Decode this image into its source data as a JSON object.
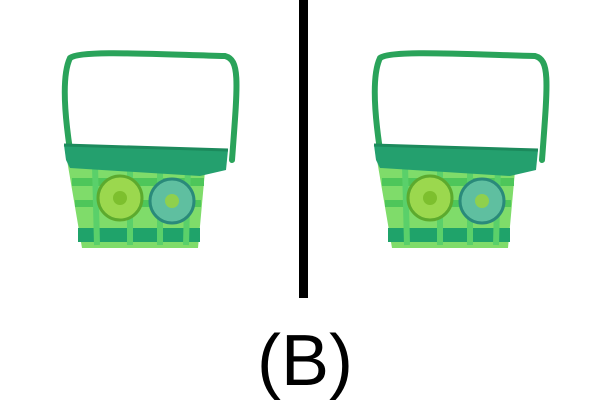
{
  "label": "(B)"
}
